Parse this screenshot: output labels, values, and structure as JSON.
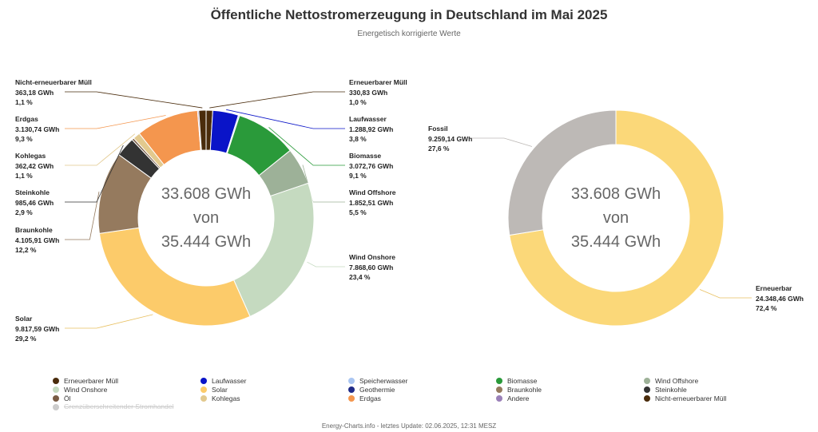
{
  "chart_data": [
    {
      "type": "pie",
      "variant": "donut",
      "title": "Öffentliche Nettostromerzeugung in Deutschland im Mai 2025",
      "subtitle": "Energetisch korrigierte Werte",
      "center_text": [
        "33.608 GWh",
        "von",
        "35.444 GWh"
      ],
      "slices": [
        {
          "name": "Erneuerbarer Müll",
          "value": 330.83,
          "value_label": "330,83 GWh",
          "percent_label": "1,0 %",
          "color": "#4a2c0c",
          "labeled": true
        },
        {
          "name": "Laufwasser",
          "value": 1288.92,
          "value_label": "1.288,92 GWh",
          "percent_label": "3,8 %",
          "color": "#0a14c8",
          "labeled": true
        },
        {
          "name": "Speicherwasser",
          "value": 60,
          "color": "#aac6f2",
          "labeled": false
        },
        {
          "name": "Biomasse",
          "value": 3072.76,
          "value_label": "3.072,76 GWh",
          "percent_label": "9,1 %",
          "color": "#2a9a3a",
          "labeled": true
        },
        {
          "name": "Wind Offshore",
          "value": 1852.51,
          "value_label": "1.852,51 GWh",
          "percent_label": "5,5 %",
          "color": "#9db198",
          "labeled": true
        },
        {
          "name": "Wind Onshore",
          "value": 7868.6,
          "value_label": "7.868,60 GWh",
          "percent_label": "23,4 %",
          "color": "#c5dac0",
          "labeled": true
        },
        {
          "name": "Solar",
          "value": 9817.59,
          "value_label": "9.817,59 GWh",
          "percent_label": "29,2 %",
          "color": "#fccb6a",
          "labeled": true
        },
        {
          "name": "Braunkohle",
          "value": 4105.91,
          "value_label": "4.105,91 GWh",
          "percent_label": "12,2 %",
          "color": "#957a5e",
          "labeled": true
        },
        {
          "name": "Steinkohle",
          "value": 985.46,
          "value_label": "985,46 GWh",
          "percent_label": "2,9 %",
          "color": "#333333",
          "labeled": true
        },
        {
          "name": "Öl",
          "value": 110,
          "color": "#7a5c45",
          "labeled": false
        },
        {
          "name": "Kohlegas",
          "value": 362.42,
          "value_label": "362,42 GWh",
          "percent_label": "1,1 %",
          "color": "#e2c98e",
          "labeled": true
        },
        {
          "name": "Erdgas",
          "value": 3130.74,
          "value_label": "3.130,74 GWh",
          "percent_label": "9,3 %",
          "color": "#f4964e",
          "labeled": true
        },
        {
          "name": "Andere",
          "value": 60,
          "color": "#9a80b8",
          "labeled": false
        },
        {
          "name": "Nicht-erneuerbarer Müll",
          "value": 363.18,
          "value_label": "363,18 GWh",
          "percent_label": "1,1 %",
          "color": "#4a2c0c",
          "labeled": true
        }
      ]
    },
    {
      "type": "pie",
      "variant": "donut",
      "center_text": [
        "33.608 GWh",
        "von",
        "35.444 GWh"
      ],
      "slices": [
        {
          "name": "Erneuerbar",
          "value": 24348.46,
          "value_label": "24.348,46 GWh",
          "percent_label": "72,4 %",
          "color": "#fbd879",
          "labeled": true
        },
        {
          "name": "Fossil",
          "value": 9259.14,
          "value_label": "9.259,14 GWh",
          "percent_label": "27,6 %",
          "color": "#bdb9b6",
          "labeled": true
        }
      ]
    }
  ],
  "legend": [
    {
      "name": "Erneuerbarer Müll",
      "color": "#4a2c0c"
    },
    {
      "name": "Laufwasser",
      "color": "#0a14c8"
    },
    {
      "name": "Speicherwasser",
      "color": "#aac6f2"
    },
    {
      "name": "Biomasse",
      "color": "#2a9a3a"
    },
    {
      "name": "Wind Offshore",
      "color": "#9db198"
    },
    {
      "name": "Wind Onshore",
      "color": "#c5dac0"
    },
    {
      "name": "Solar",
      "color": "#fccb6a"
    },
    {
      "name": "Geothermie",
      "color": "#1f2a88"
    },
    {
      "name": "Braunkohle",
      "color": "#957a5e"
    },
    {
      "name": "Steinkohle",
      "color": "#333333"
    },
    {
      "name": "Öl",
      "color": "#7a5c45"
    },
    {
      "name": "Kohlegas",
      "color": "#e2c98e"
    },
    {
      "name": "Erdgas",
      "color": "#f4964e"
    },
    {
      "name": "Andere",
      "color": "#9a80b8"
    },
    {
      "name": "Nicht-erneuerbarer Müll",
      "color": "#4a2c0c"
    },
    {
      "name": "Grenzüberschreitender Stromhandel",
      "color": "#cccccc",
      "disabled": true
    }
  ],
  "footer": "Energy-Charts.info - letztes Update: 02.06.2025, 12:31 MESZ"
}
